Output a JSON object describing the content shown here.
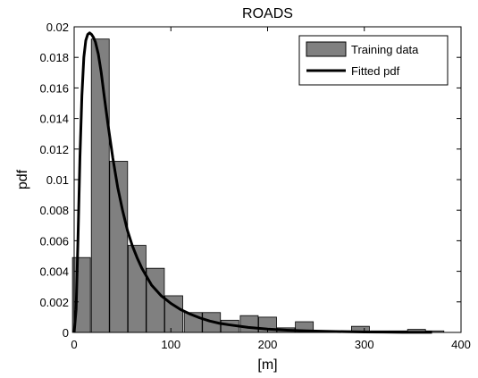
{
  "chart_data": {
    "type": "bar",
    "title": "ROADS",
    "xlabel": "[m]",
    "ylabel": "pdf",
    "xlim": [
      0,
      400
    ],
    "ylim": [
      0,
      0.02
    ],
    "xticks": [
      0,
      100,
      200,
      300,
      400
    ],
    "yticks": [
      0,
      0.002,
      0.004,
      0.006,
      0.008,
      0.01,
      0.012,
      0.014,
      0.016,
      0.018,
      0.02
    ],
    "grid": false,
    "legend_position": "top-right",
    "bar_color": "#808080",
    "line_color": "#000000",
    "series": [
      {
        "name": "Training data",
        "type": "bar",
        "bin_width": 18.5,
        "x": [
          7.5,
          27,
          46,
          65,
          84,
          103,
          123,
          142,
          161,
          181,
          200,
          219,
          238,
          258,
          277,
          296,
          316,
          335,
          354,
          373
        ],
        "values": [
          0.0049,
          0.0192,
          0.0112,
          0.0057,
          0.0042,
          0.0024,
          0.0013,
          0.0013,
          0.0008,
          0.0011,
          0.001,
          0.0003,
          0.0007,
          0.0001,
          0.0001,
          0.0004,
          0.0001,
          0.0001,
          0.0002,
          0.0001
        ]
      },
      {
        "name": "Fitted pdf",
        "type": "line",
        "x": [
          0,
          2,
          4,
          6,
          8,
          10,
          12,
          14,
          16,
          18,
          20,
          22,
          25,
          28,
          31,
          35,
          40,
          45,
          50,
          55,
          60,
          65,
          70,
          80,
          90,
          100,
          110,
          120,
          130,
          140,
          150,
          160,
          180,
          200,
          220,
          240,
          260,
          280,
          300,
          320,
          340,
          370
        ],
        "values": [
          0,
          0.0015,
          0.0062,
          0.0115,
          0.0155,
          0.018,
          0.0191,
          0.0195,
          0.0196,
          0.0195,
          0.0193,
          0.019,
          0.0182,
          0.017,
          0.0155,
          0.0136,
          0.0114,
          0.0095,
          0.008,
          0.0067,
          0.0057,
          0.0049,
          0.0042,
          0.0031,
          0.0024,
          0.0019,
          0.0015,
          0.0012,
          0.00095,
          0.00075,
          0.0006,
          0.0005,
          0.00033,
          0.00022,
          0.00015,
          0.0001,
          7e-05,
          5e-05,
          3e-05,
          2e-05,
          1e-05,
          5e-06
        ]
      }
    ]
  }
}
